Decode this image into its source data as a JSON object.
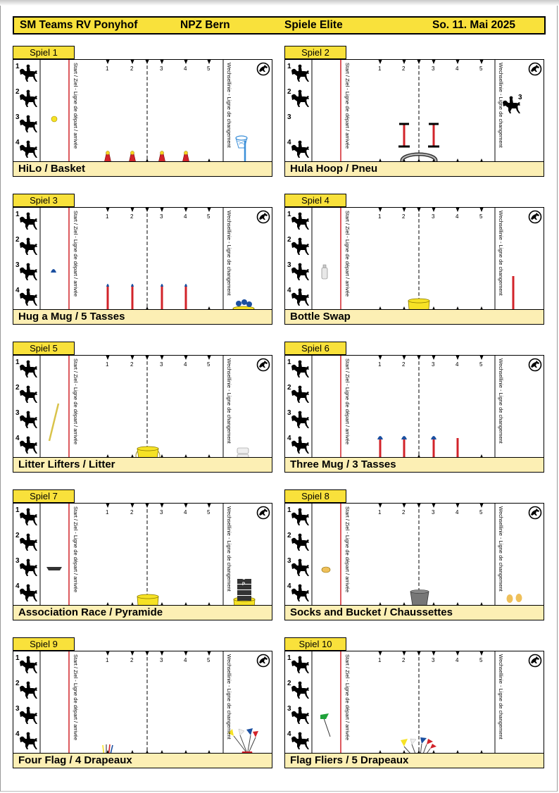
{
  "header": {
    "event": "SM Teams RV Ponyhof",
    "venue": "NPZ Bern",
    "category": "Spiele Elite",
    "date": "So. 11. Mai 2025"
  },
  "field_labels": {
    "start_line": "Start / Ziel - Ligne de départ / arrivée",
    "change_line": "Wechsellinie - Ligne de changement",
    "poles": [
      "1",
      "2",
      "3",
      "4",
      "5"
    ],
    "riders": [
      "1",
      "2",
      "3",
      "4"
    ]
  },
  "cards": [
    {
      "tab": "Spiel 1",
      "title": "HiLo / Basket"
    },
    {
      "tab": "Spiel 2",
      "title": "Hula Hoop / Pneu",
      "rider_on_field": "3"
    },
    {
      "tab": "Spiel 3",
      "title": "Hug a Mug / 5 Tasses"
    },
    {
      "tab": "Spiel 4",
      "title": "Bottle Swap"
    },
    {
      "tab": "Spiel 5",
      "title": "Litter Lifters / Litter"
    },
    {
      "tab": "Spiel 6",
      "title": "Three Mug / 3 Tasses"
    },
    {
      "tab": "Spiel 7",
      "title": "Association Race / Pyramide",
      "pyramid_letters": [
        "E",
        "N",
        "O",
        "P"
      ],
      "marker_letter": "Y"
    },
    {
      "tab": "Spiel 8",
      "title": "Socks and Bucket / Chaussettes"
    },
    {
      "tab": "Spiel 9",
      "title": "Four Flag / 4 Drapeaux"
    },
    {
      "tab": "Spiel 10",
      "title": "Flag Fliers / 5 Drapeaux"
    }
  ],
  "colors": {
    "yellow": "#f9e13b",
    "caption": "#fcefb4",
    "red": "#d2232a",
    "blue": "#1b4fa0",
    "lightblue": "#3b8fd8"
  }
}
